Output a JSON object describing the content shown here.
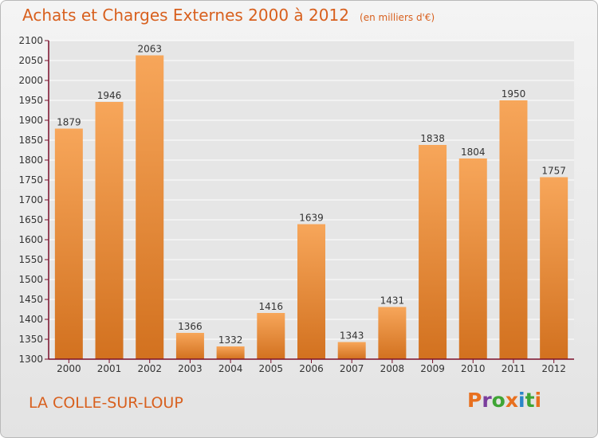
{
  "header": {
    "title": "Achats et Charges Externes 2000 à 2012",
    "subtitle": "(en milliers d'€)"
  },
  "footer": {
    "place": "LA COLLE-SUR-LOUP",
    "logo": "Proxiti",
    "logo_letter_colors": [
      "#e8701f",
      "#7a3e9d",
      "#3fa535",
      "#e8701f",
      "#2a86c8",
      "#3fa535",
      "#e8701f"
    ]
  },
  "colors": {
    "bar_light": "#f7a65a",
    "bar_dark": "#d2711f",
    "axis": "#7a0e2a",
    "grid": "#ffffff",
    "plot_bg": "#e6e6e6"
  },
  "chart_data": {
    "type": "bar",
    "title": "Achats et Charges Externes 2000 à 2012",
    "subtitle": "(en milliers d'€)",
    "xlabel": "",
    "ylabel": "",
    "categories": [
      "2000",
      "2001",
      "2002",
      "2003",
      "2004",
      "2005",
      "2006",
      "2007",
      "2008",
      "2009",
      "2010",
      "2011",
      "2012"
    ],
    "values": [
      1879,
      1946,
      2063,
      1366,
      1332,
      1416,
      1639,
      1343,
      1431,
      1838,
      1804,
      1950,
      1757
    ],
    "ylim": [
      1300,
      2100
    ],
    "yticks": [
      1300,
      1350,
      1400,
      1450,
      1500,
      1550,
      1600,
      1650,
      1700,
      1750,
      1800,
      1850,
      1900,
      1950,
      2000,
      2050,
      2100
    ],
    "grid": true,
    "data_labels": true
  }
}
